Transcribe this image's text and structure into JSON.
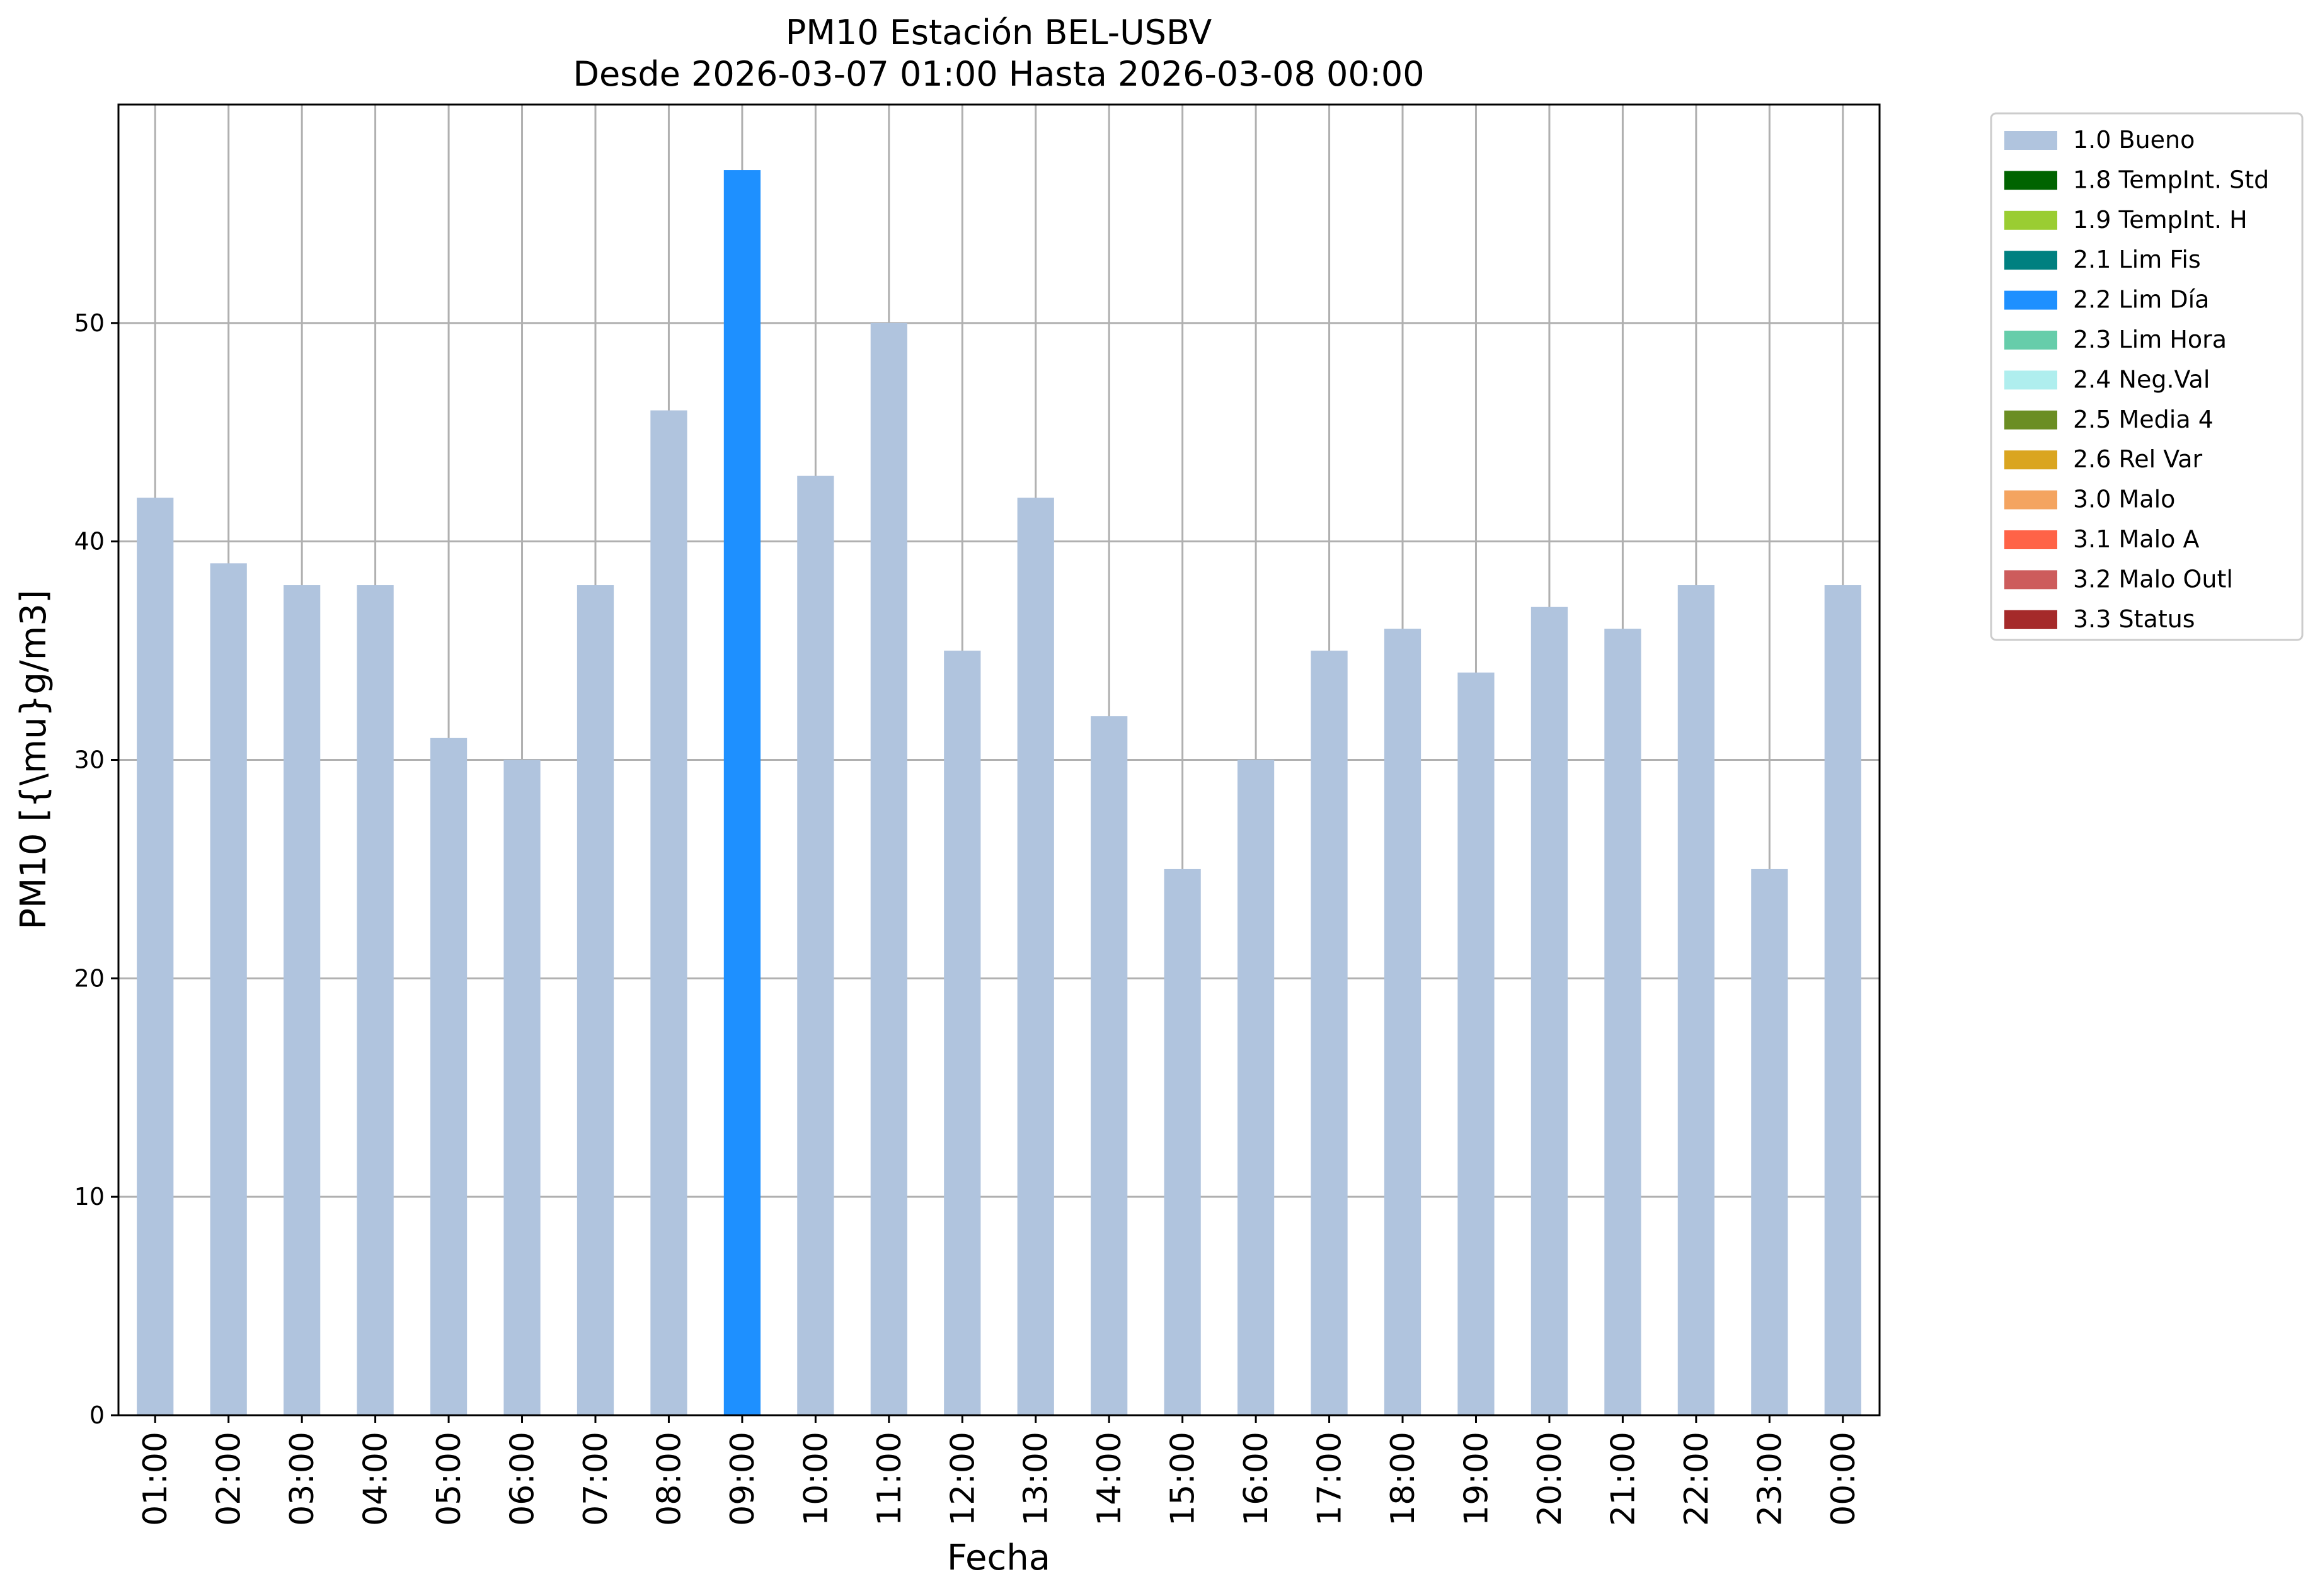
{
  "chart_data": {
    "type": "bar",
    "title": "PM10 Estación BEL-USBV",
    "subtitle": "Desde 2026-03-07 01:00 Hasta 2026-03-08 00:00",
    "xlabel": "Fecha",
    "ylabel": "PM10 [{\\mu}g/m3]",
    "ylim": [
      0,
      60
    ],
    "yticks": [
      "0",
      "10",
      "20",
      "30",
      "40",
      "50"
    ],
    "grid": true,
    "legend_position": "outside-right",
    "categories": [
      "01:00",
      "02:00",
      "03:00",
      "04:00",
      "05:00",
      "06:00",
      "07:00",
      "08:00",
      "09:00",
      "10:00",
      "11:00",
      "12:00",
      "13:00",
      "14:00",
      "15:00",
      "16:00",
      "17:00",
      "18:00",
      "19:00",
      "20:00",
      "21:00",
      "22:00",
      "23:00",
      "00:00"
    ],
    "values": [
      42,
      39,
      38,
      38,
      31,
      30,
      38,
      46,
      57,
      43,
      50,
      35,
      42,
      32,
      25,
      30,
      35,
      36,
      34,
      37,
      36,
      38,
      25,
      38
    ],
    "flags": [
      "1.0 Bueno",
      "1.0 Bueno",
      "1.0 Bueno",
      "1.0 Bueno",
      "1.0 Bueno",
      "1.0 Bueno",
      "1.0 Bueno",
      "1.0 Bueno",
      "2.2 Lim Día",
      "1.0 Bueno",
      "1.0 Bueno",
      "1.0 Bueno",
      "1.0 Bueno",
      "1.0 Bueno",
      "1.0 Bueno",
      "1.0 Bueno",
      "1.0 Bueno",
      "1.0 Bueno",
      "1.0 Bueno",
      "1.0 Bueno",
      "1.0 Bueno",
      "1.0 Bueno",
      "1.0 Bueno",
      "1.0 Bueno"
    ],
    "legend": [
      {
        "label": "1.0 Bueno",
        "color": "#b0c4de"
      },
      {
        "label": "1.8 TempInt. Std",
        "color": "#006400"
      },
      {
        "label": "1.9 TempInt. H",
        "color": "#9acd32"
      },
      {
        "label": "2.1 Lim Fis",
        "color": "#008080"
      },
      {
        "label": "2.2 Lim Día",
        "color": "#1e90ff"
      },
      {
        "label": "2.3 Lim Hora",
        "color": "#66cdaa"
      },
      {
        "label": "2.4 Neg.Val",
        "color": "#afeeee"
      },
      {
        "label": "2.5 Media 4",
        "color": "#6b8e23"
      },
      {
        "label": "2.6 Rel Var",
        "color": "#daa520"
      },
      {
        "label": "3.0 Malo",
        "color": "#f4a460"
      },
      {
        "label": "3.1 Malo A",
        "color": "#ff6347"
      },
      {
        "label": "3.2 Malo Outl",
        "color": "#cd5c5c"
      },
      {
        "label": "3.3 Status",
        "color": "#a52a2a"
      }
    ]
  }
}
